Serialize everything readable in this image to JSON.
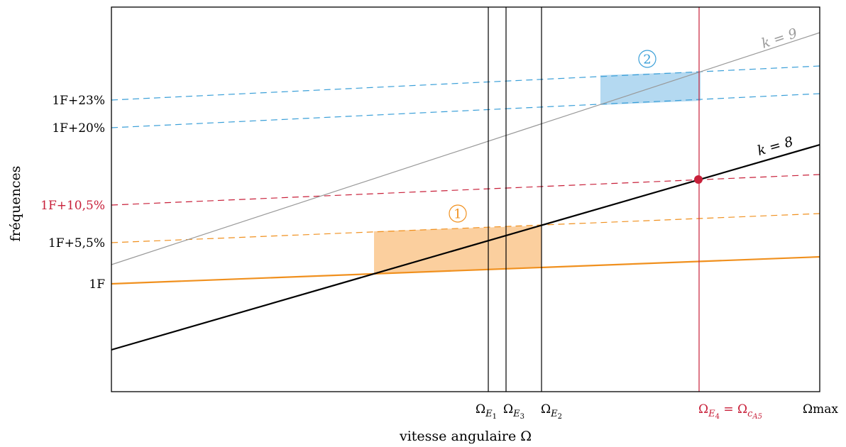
{
  "axes": {
    "x_label": "vitesse angulaire Ω",
    "y_label": "fréquences"
  },
  "y_ticks": [
    {
      "label": "1F+23%",
      "color": "#000000"
    },
    {
      "label": "1F+20%",
      "color": "#000000"
    },
    {
      "label": "1F+10,5%",
      "color": "#c8203a"
    },
    {
      "label": "1F+5,5%",
      "color": "#000000"
    },
    {
      "label": "1F",
      "color": "#000000"
    }
  ],
  "x_ticks": [
    {
      "name": "omega-e1",
      "base": "Ω",
      "sub": "E",
      "subsub": "1",
      "color": "#000000"
    },
    {
      "name": "omega-e3",
      "base": "Ω",
      "sub": "E",
      "subsub": "3",
      "color": "#000000"
    },
    {
      "name": "omega-e2",
      "base": "Ω",
      "sub": "E",
      "subsub": "2",
      "color": "#000000"
    },
    {
      "name": "omega-e4",
      "base": "Ω",
      "sub": "E",
      "subsub": "4",
      "mid": " = Ω",
      "sub2": "c",
      "sub2sub": "A5",
      "color": "#c8203a"
    },
    {
      "name": "omega-max",
      "base": "Ω",
      "sub_plain": "max",
      "color": "#000000"
    }
  ],
  "lines": {
    "k8_label": "k = 8",
    "k9_label": "k = 9"
  },
  "zones": {
    "zone1_label": "1",
    "zone2_label": "2"
  },
  "colors": {
    "orange": "#f0901e",
    "orange_fill": "#fbcf9e",
    "blue": "#3a9fd8",
    "blue_fill": "#b4d9f1",
    "red": "#c8203a",
    "gray": "#999999",
    "black": "#000000"
  }
}
